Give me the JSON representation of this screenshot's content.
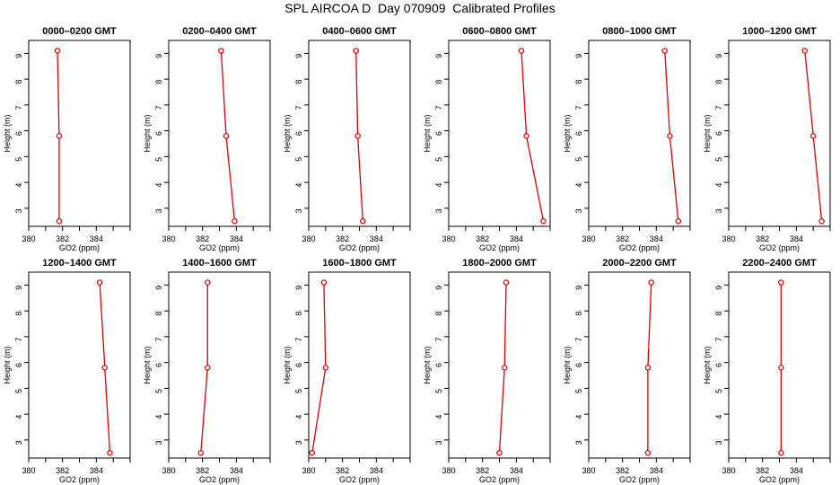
{
  "figure": {
    "title": "SPL AIRCOA D  Day 070909  Calibrated Profiles"
  },
  "colors": {
    "series": "#dd0000",
    "axis": "#000000"
  },
  "chart_data": [
    {
      "type": "line",
      "title": "0000–0200 GMT",
      "xlabel": "GO2 (ppm)",
      "ylabel": "Height (m)",
      "xlim": [
        380,
        386
      ],
      "ylim": [
        2.3,
        9.5
      ],
      "xticks": [
        "380",
        "382",
        "384"
      ],
      "yticks": [
        "3",
        "4",
        "5",
        "6",
        "7",
        "8",
        "9"
      ],
      "points": [
        {
          "x": 381.7,
          "y": 9.1
        },
        {
          "x": 381.8,
          "y": 5.8
        },
        {
          "x": 381.8,
          "y": 2.5
        }
      ]
    },
    {
      "type": "line",
      "title": "0200–0400 GMT",
      "xlabel": "GO2 (ppm)",
      "ylabel": "Height (m)",
      "xlim": [
        380,
        386
      ],
      "ylim": [
        2.3,
        9.5
      ],
      "xticks": [
        "380",
        "382",
        "384"
      ],
      "yticks": [
        "3",
        "4",
        "5",
        "6",
        "7",
        "8",
        "9"
      ],
      "points": [
        {
          "x": 383.1,
          "y": 9.1
        },
        {
          "x": 383.4,
          "y": 5.8
        },
        {
          "x": 383.9,
          "y": 2.5
        }
      ]
    },
    {
      "type": "line",
      "title": "0400–0600 GMT",
      "xlabel": "GO2 (ppm)",
      "ylabel": "Height (m)",
      "xlim": [
        380,
        386
      ],
      "ylim": [
        2.3,
        9.5
      ],
      "xticks": [
        "380",
        "382",
        "384"
      ],
      "yticks": [
        "3",
        "4",
        "5",
        "6",
        "7",
        "8",
        "9"
      ],
      "points": [
        {
          "x": 382.8,
          "y": 9.1
        },
        {
          "x": 382.9,
          "y": 5.8
        },
        {
          "x": 383.2,
          "y": 2.5
        }
      ]
    },
    {
      "type": "line",
      "title": "0600–0800 GMT",
      "xlabel": "GO2 (ppm)",
      "ylabel": "Height (m)",
      "xlim": [
        380,
        386
      ],
      "ylim": [
        2.3,
        9.5
      ],
      "xticks": [
        "380",
        "382",
        "384"
      ],
      "yticks": [
        "3",
        "4",
        "5",
        "6",
        "7",
        "8",
        "9"
      ],
      "points": [
        {
          "x": 384.3,
          "y": 9.1
        },
        {
          "x": 384.6,
          "y": 5.8
        },
        {
          "x": 385.6,
          "y": 2.5
        }
      ]
    },
    {
      "type": "line",
      "title": "0800–1000 GMT",
      "xlabel": "GO2 (ppm)",
      "ylabel": "Height (m)",
      "xlim": [
        380,
        386
      ],
      "ylim": [
        2.3,
        9.5
      ],
      "xticks": [
        "380",
        "382",
        "384"
      ],
      "yticks": [
        "3",
        "4",
        "5",
        "6",
        "7",
        "8",
        "9"
      ],
      "points": [
        {
          "x": 384.5,
          "y": 9.1
        },
        {
          "x": 384.8,
          "y": 5.8
        },
        {
          "x": 385.3,
          "y": 2.5
        }
      ]
    },
    {
      "type": "line",
      "title": "1000–1200 GMT",
      "xlabel": "GO2 (ppm)",
      "ylabel": "Height (m)",
      "xlim": [
        380,
        386
      ],
      "ylim": [
        2.3,
        9.5
      ],
      "xticks": [
        "380",
        "382",
        "384"
      ],
      "yticks": [
        "3",
        "4",
        "5",
        "6",
        "7",
        "8",
        "9"
      ],
      "points": [
        {
          "x": 384.5,
          "y": 9.1
        },
        {
          "x": 385.0,
          "y": 5.8
        },
        {
          "x": 385.5,
          "y": 2.5
        }
      ]
    },
    {
      "type": "line",
      "title": "1200–1400 GMT",
      "xlabel": "GO2 (ppm)",
      "ylabel": "Height (m)",
      "xlim": [
        380,
        386
      ],
      "ylim": [
        2.3,
        9.5
      ],
      "xticks": [
        "380",
        "382",
        "384"
      ],
      "yticks": [
        "3",
        "4",
        "5",
        "6",
        "7",
        "8",
        "9"
      ],
      "points": [
        {
          "x": 384.2,
          "y": 9.1
        },
        {
          "x": 384.5,
          "y": 5.8
        },
        {
          "x": 384.8,
          "y": 2.5
        }
      ]
    },
    {
      "type": "line",
      "title": "1400–1600 GMT",
      "xlabel": "GO2 (ppm)",
      "ylabel": "Height (m)",
      "xlim": [
        380,
        386
      ],
      "ylim": [
        2.3,
        9.5
      ],
      "xticks": [
        "380",
        "382",
        "384"
      ],
      "yticks": [
        "3",
        "4",
        "5",
        "6",
        "7",
        "8",
        "9"
      ],
      "points": [
        {
          "x": 382.3,
          "y": 9.1
        },
        {
          "x": 382.3,
          "y": 5.8
        },
        {
          "x": 381.9,
          "y": 2.5
        }
      ]
    },
    {
      "type": "line",
      "title": "1600–1800 GMT",
      "xlabel": "GO2 (ppm)",
      "ylabel": "Height (m)",
      "xlim": [
        380,
        386
      ],
      "ylim": [
        2.3,
        9.5
      ],
      "xticks": [
        "380",
        "382",
        "384"
      ],
      "yticks": [
        "3",
        "4",
        "5",
        "6",
        "7",
        "8",
        "9"
      ],
      "points": [
        {
          "x": 380.9,
          "y": 9.1
        },
        {
          "x": 381.0,
          "y": 5.8
        },
        {
          "x": 380.2,
          "y": 2.5
        }
      ]
    },
    {
      "type": "line",
      "title": "1800–2000 GMT",
      "xlabel": "GO2 (ppm)",
      "ylabel": "Height (m)",
      "xlim": [
        380,
        386
      ],
      "ylim": [
        2.3,
        9.5
      ],
      "xticks": [
        "380",
        "382",
        "384"
      ],
      "yticks": [
        "3",
        "4",
        "5",
        "6",
        "7",
        "8",
        "9"
      ],
      "points": [
        {
          "x": 383.4,
          "y": 9.1
        },
        {
          "x": 383.3,
          "y": 5.8
        },
        {
          "x": 383.0,
          "y": 2.5
        }
      ]
    },
    {
      "type": "line",
      "title": "2000–2200 GMT",
      "xlabel": "GO2 (ppm)",
      "ylabel": "Height (m)",
      "xlim": [
        380,
        386
      ],
      "ylim": [
        2.3,
        9.5
      ],
      "xticks": [
        "380",
        "382",
        "384"
      ],
      "yticks": [
        "3",
        "4",
        "5",
        "6",
        "7",
        "8",
        "9"
      ],
      "points": [
        {
          "x": 383.7,
          "y": 9.1
        },
        {
          "x": 383.5,
          "y": 5.8
        },
        {
          "x": 383.5,
          "y": 2.5
        }
      ]
    },
    {
      "type": "line",
      "title": "2200–2400 GMT",
      "xlabel": "GO2 (ppm)",
      "ylabel": "Height (m)",
      "xlim": [
        380,
        386
      ],
      "ylim": [
        2.3,
        9.5
      ],
      "xticks": [
        "380",
        "382",
        "384"
      ],
      "yticks": [
        "3",
        "4",
        "5",
        "6",
        "7",
        "8",
        "9"
      ],
      "points": [
        {
          "x": 383.1,
          "y": 9.1
        },
        {
          "x": 383.1,
          "y": 5.8
        },
        {
          "x": 383.1,
          "y": 2.5
        }
      ]
    }
  ]
}
